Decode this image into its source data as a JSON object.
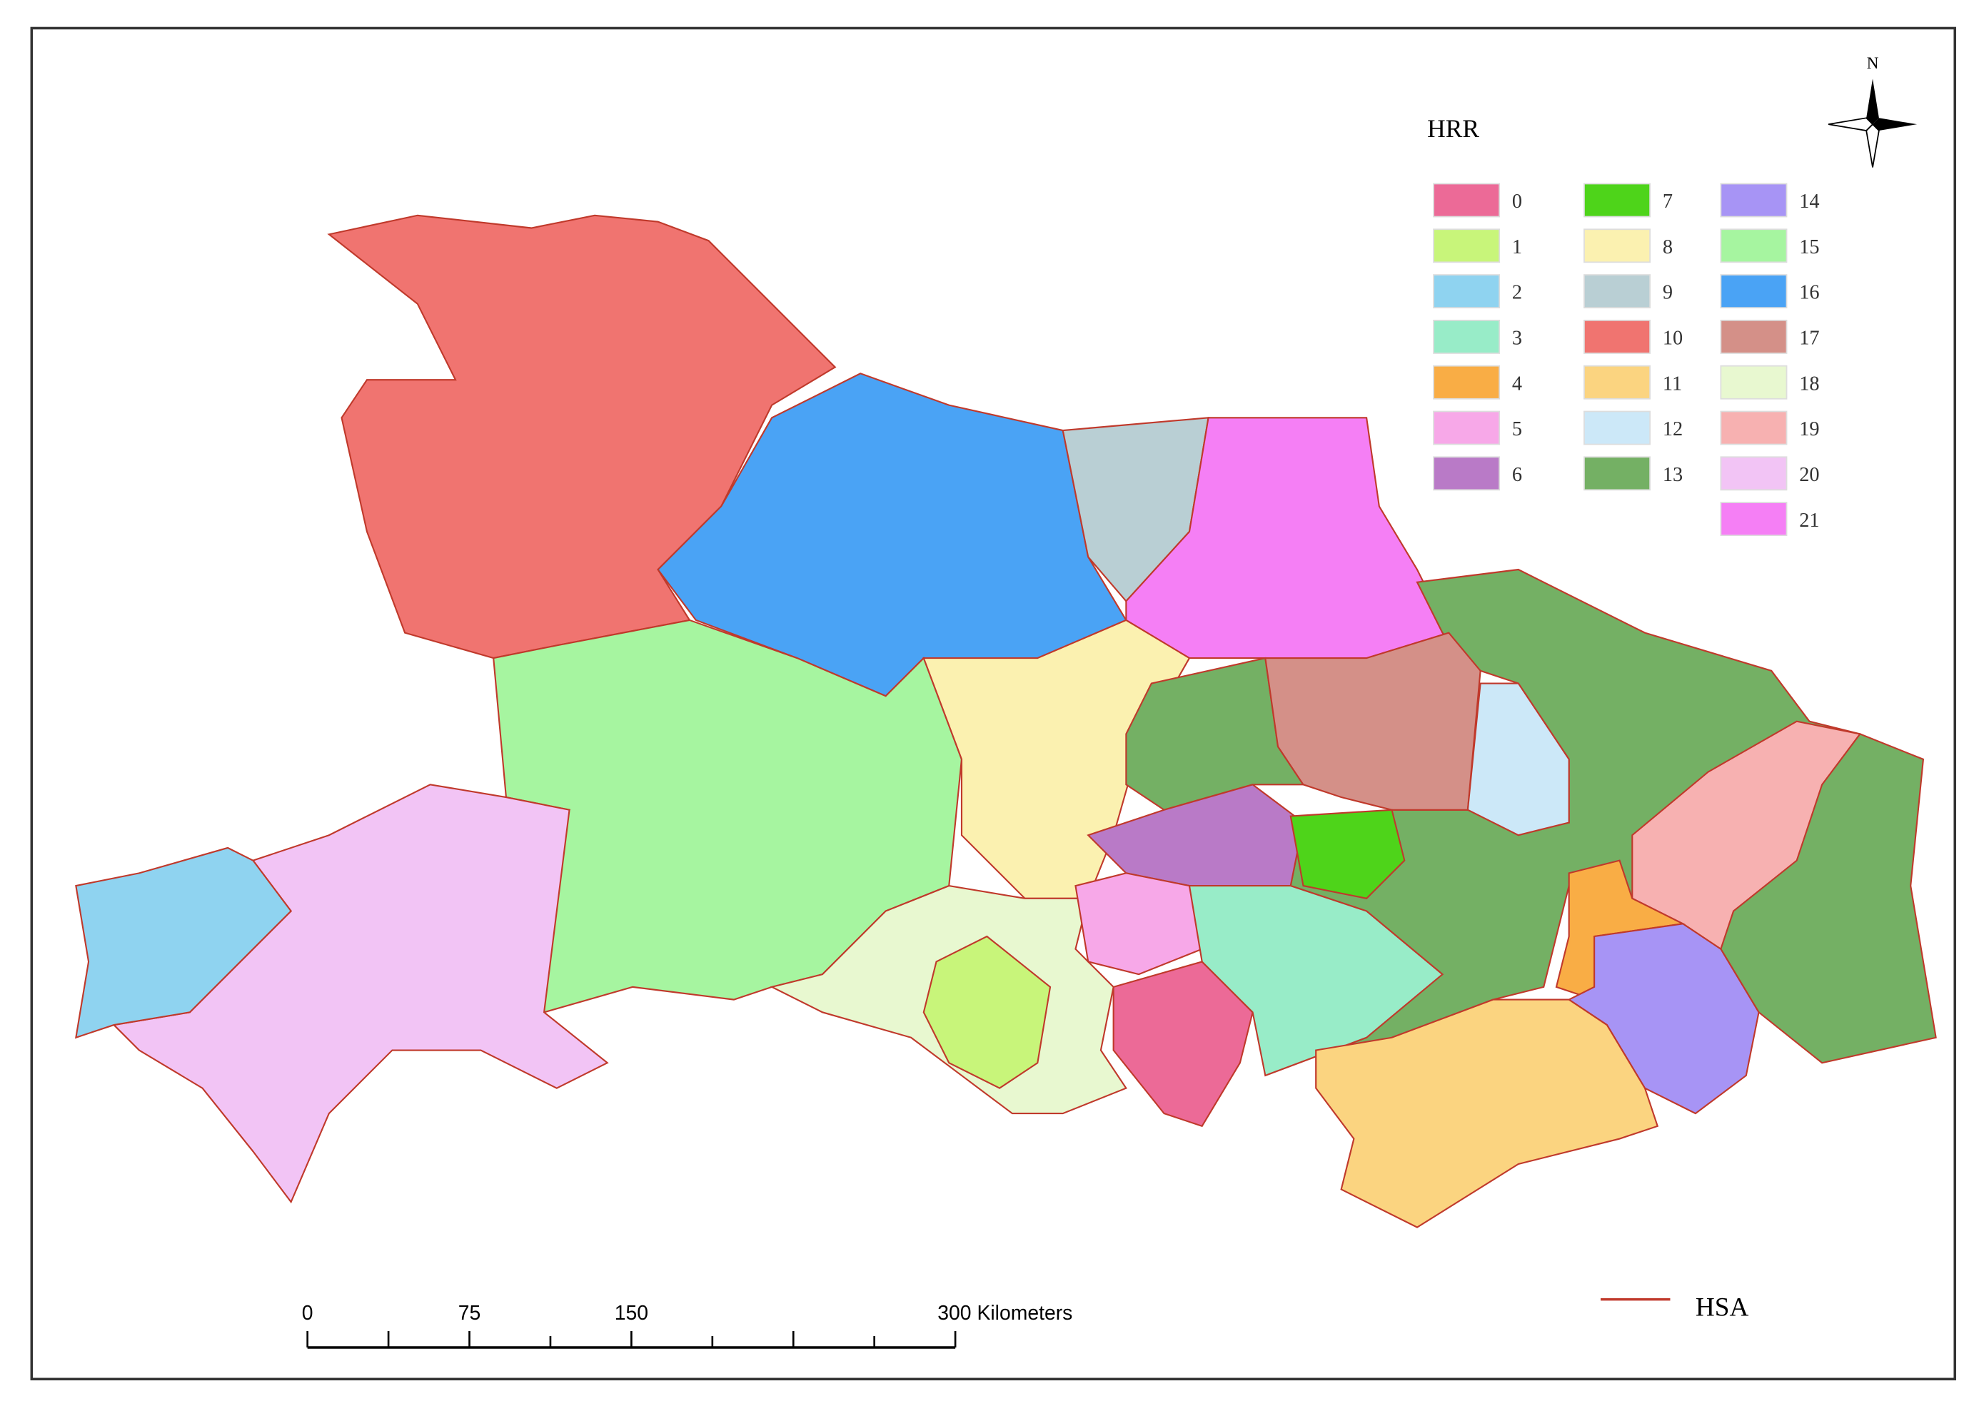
{
  "legend": {
    "title": "HRR",
    "items": [
      {
        "label": "0",
        "color": "#ec6a97"
      },
      {
        "label": "1",
        "color": "#c8f57a"
      },
      {
        "label": "2",
        "color": "#8fd3f0"
      },
      {
        "label": "3",
        "color": "#98ecc8"
      },
      {
        "label": "4",
        "color": "#f9ad45"
      },
      {
        "label": "5",
        "color": "#f7a8e8"
      },
      {
        "label": "6",
        "color": "#b97ac7"
      },
      {
        "label": "7",
        "color": "#4ed41a"
      },
      {
        "label": "8",
        "color": "#fbf1b0"
      },
      {
        "label": "9",
        "color": "#b9cfd4"
      },
      {
        "label": "10",
        "color": "#f07470"
      },
      {
        "label": "11",
        "color": "#fbd480"
      },
      {
        "label": "12",
        "color": "#cce8f8"
      },
      {
        "label": "13",
        "color": "#74b064"
      },
      {
        "label": "14",
        "color": "#a794f5"
      },
      {
        "label": "15",
        "color": "#a6f5a0"
      },
      {
        "label": "16",
        "color": "#4aa3f5"
      },
      {
        "label": "17",
        "color": "#d49088"
      },
      {
        "label": "18",
        "color": "#e8f8d0"
      },
      {
        "label": "19",
        "color": "#f7b1b1"
      },
      {
        "label": "20",
        "color": "#f2c4f5"
      },
      {
        "label": "21",
        "color": "#f57ff5"
      }
    ]
  },
  "hsa_legend": {
    "label": "HSA",
    "color": "#c0392b"
  },
  "scale_bar": {
    "labels": [
      "0",
      "75",
      "150",
      "300 Kilometers"
    ]
  },
  "north_arrow": {
    "label": "N"
  }
}
